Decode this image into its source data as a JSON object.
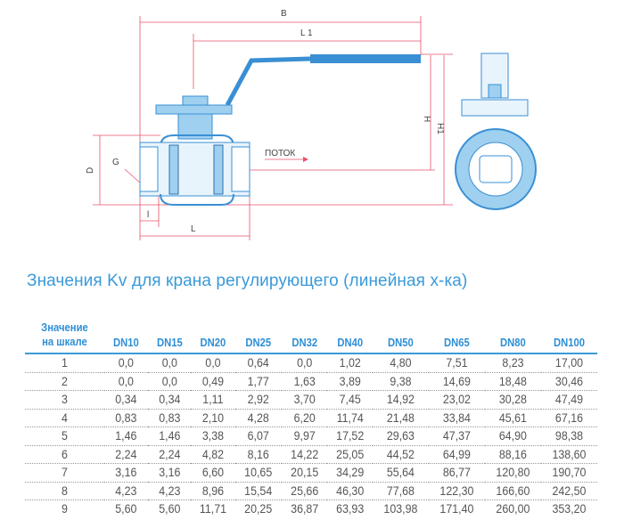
{
  "drawing": {
    "labels": {
      "B": "B",
      "L1": "L 1",
      "H": "H",
      "H1": "H1",
      "D": "D",
      "G": "G",
      "l": "l",
      "L": "L",
      "flow": "ПОТОК"
    },
    "colors": {
      "body": "#3a8fd4",
      "body_light": "#9fd0ef",
      "dimension": "#e8506a"
    }
  },
  "title": "Значения Kv для крана регулирующего (линейная х-ка)",
  "table": {
    "header_first": [
      "Значение",
      "на шкале"
    ],
    "columns": [
      "DN10",
      "DN15",
      "DN20",
      "DN25",
      "DN32",
      "DN40",
      "DN50",
      "DN65",
      "DN80",
      "DN100"
    ],
    "rows": [
      [
        "1",
        "0,0",
        "0,0",
        "0,0",
        "0,64",
        "0,0",
        "1,02",
        "4,80",
        "7,51",
        "8,23",
        "17,00"
      ],
      [
        "2",
        "0,0",
        "0,0",
        "0,49",
        "1,77",
        "1,63",
        "3,89",
        "9,38",
        "14,69",
        "18,48",
        "30,46"
      ],
      [
        "3",
        "0,34",
        "0,34",
        "1,11",
        "2,92",
        "3,70",
        "7,45",
        "14,92",
        "23,02",
        "30,28",
        "47,49"
      ],
      [
        "4",
        "0,83",
        "0,83",
        "2,10",
        "4,28",
        "6,20",
        "11,74",
        "21,48",
        "33,84",
        "45,61",
        "67,16"
      ],
      [
        "5",
        "1,46",
        "1,46",
        "3,38",
        "6,07",
        "9,97",
        "17,52",
        "29,63",
        "47,37",
        "64,90",
        "98,38"
      ],
      [
        "6",
        "2,24",
        "2,24",
        "4,82",
        "8,16",
        "14,22",
        "25,05",
        "44,52",
        "64,99",
        "88,16",
        "138,60"
      ],
      [
        "7",
        "3,16",
        "3,16",
        "6,60",
        "10,65",
        "20,15",
        "34,29",
        "55,64",
        "86,77",
        "120,80",
        "190,70"
      ],
      [
        "8",
        "4,23",
        "4,23",
        "8,96",
        "15,54",
        "25,66",
        "46,30",
        "77,68",
        "122,30",
        "166,60",
        "242,50"
      ],
      [
        "9",
        "5,60",
        "5,60",
        "11,71",
        "20,25",
        "36,87",
        "63,93",
        "103,98",
        "171,40",
        "260,00",
        "353,20"
      ]
    ]
  }
}
